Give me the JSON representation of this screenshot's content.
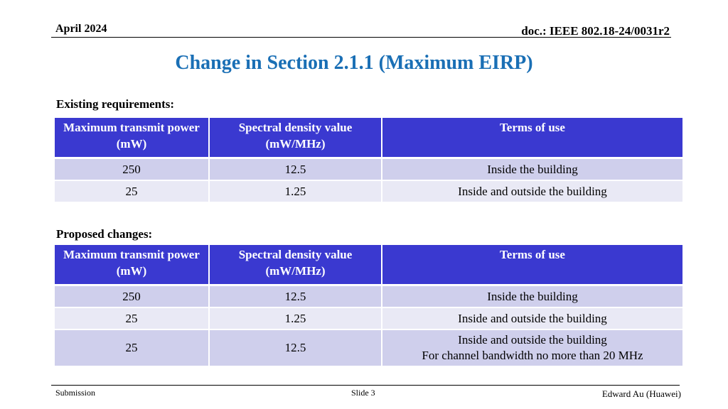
{
  "header": {
    "date": "April 2024",
    "doc": "doc.: IEEE 802.18-24/0031r2"
  },
  "title": "Change in Section 2.1.1 (Maximum EIRP)",
  "colors": {
    "title": "#1a6fb5",
    "table_header": "#3a39d0",
    "row_odd": "#cfcfec",
    "row_even": "#e9e9f5"
  },
  "existing": {
    "label": "Existing requirements:",
    "headers": [
      "Maximum transmit power (mW)",
      "Spectral density value (mW/MHz)",
      "Terms of use"
    ],
    "rows": [
      [
        "250",
        "12.5",
        "Inside the building"
      ],
      [
        "25",
        "1.25",
        "Inside and outside the building"
      ]
    ]
  },
  "proposed": {
    "label": "Proposed changes:",
    "headers": [
      "Maximum transmit power (mW)",
      "Spectral density value (mW/MHz)",
      "Terms of use"
    ],
    "rows": [
      [
        "250",
        "12.5",
        "Inside the building"
      ],
      [
        "25",
        "1.25",
        "Inside and outside the building"
      ],
      [
        "25",
        "12.5",
        "Inside and outside the building"
      ]
    ],
    "extra_line": "For channel bandwidth no more than 20 MHz"
  },
  "footer": {
    "left": "Submission",
    "center": "Slide 3",
    "right": "Edward Au (Huawei)"
  }
}
